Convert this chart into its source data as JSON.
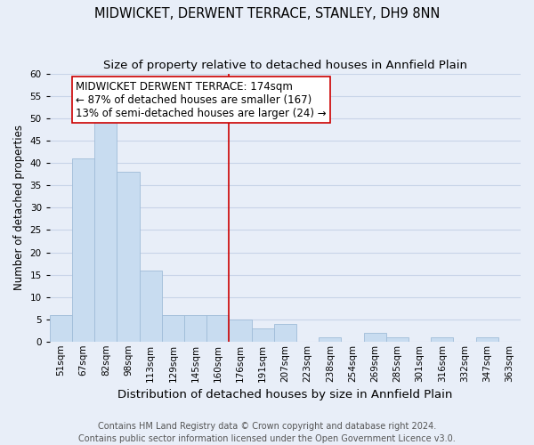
{
  "title": "MIDWICKET, DERWENT TERRACE, STANLEY, DH9 8NN",
  "subtitle": "Size of property relative to detached houses in Annfield Plain",
  "xlabel": "Distribution of detached houses by size in Annfield Plain",
  "ylabel": "Number of detached properties",
  "bin_labels": [
    "51sqm",
    "67sqm",
    "82sqm",
    "98sqm",
    "113sqm",
    "129sqm",
    "145sqm",
    "160sqm",
    "176sqm",
    "191sqm",
    "207sqm",
    "223sqm",
    "238sqm",
    "254sqm",
    "269sqm",
    "285sqm",
    "301sqm",
    "316sqm",
    "332sqm",
    "347sqm",
    "363sqm"
  ],
  "bar_heights": [
    6,
    41,
    50,
    38,
    16,
    6,
    6,
    6,
    5,
    3,
    4,
    0,
    1,
    0,
    2,
    1,
    0,
    1,
    0,
    1,
    0
  ],
  "bar_color": "#c8dcf0",
  "bar_edge_color": "#a0bcd8",
  "grid_color": "#c8d4e8",
  "background_color": "#e8eef8",
  "vline_x": 8,
  "vline_color": "#cc0000",
  "annotation_line1": "MIDWICKET DERWENT TERRACE: 174sqm",
  "annotation_line2": "← 87% of detached houses are smaller (167)",
  "annotation_line3": "13% of semi-detached houses are larger (24) →",
  "annotation_box_color": "#ffffff",
  "annotation_box_edge": "#cc0000",
  "ylim": [
    0,
    60
  ],
  "yticks": [
    0,
    5,
    10,
    15,
    20,
    25,
    30,
    35,
    40,
    45,
    50,
    55,
    60
  ],
  "footer_line1": "Contains HM Land Registry data © Crown copyright and database right 2024.",
  "footer_line2": "Contains public sector information licensed under the Open Government Licence v3.0.",
  "title_fontsize": 10.5,
  "subtitle_fontsize": 9.5,
  "xlabel_fontsize": 9.5,
  "ylabel_fontsize": 8.5,
  "tick_fontsize": 7.5,
  "annotation_fontsize": 8.5,
  "footer_fontsize": 7.0
}
